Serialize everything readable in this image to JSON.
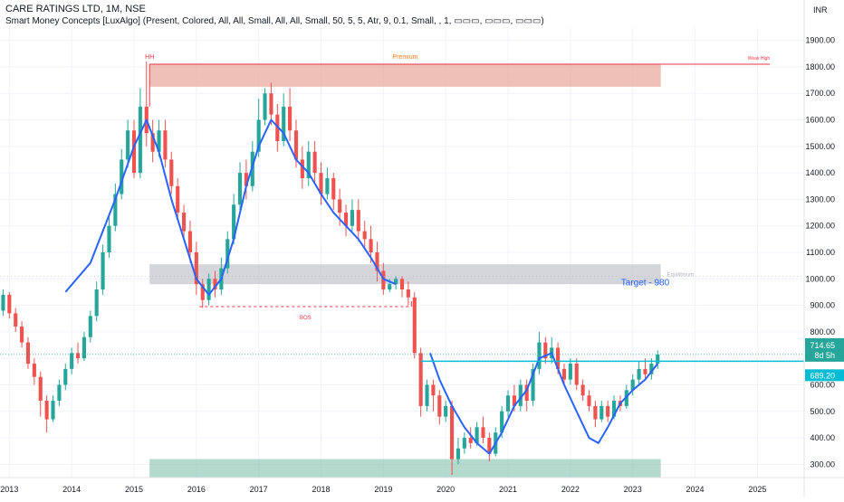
{
  "header": {
    "title": "CARE RATINGS LTD, 1M, NSE",
    "indicator": "Smart Money Concepts [LuxAlgo] (Present, Colored, All, All, Small, All, All, Small, 50, 5, 5, Atr, 9, 0.1, Small, , 1, ▭▭▭, ▭▭▭, ▭▭▭)"
  },
  "chart_data": {
    "type": "candlestick",
    "currency": "INR",
    "ylim": [
      250,
      1950
    ],
    "xlim": [
      2012.85,
      2025.75
    ],
    "y_ticks": [
      300,
      400,
      500,
      600,
      700,
      800,
      900,
      1000,
      1100,
      1200,
      1300,
      1400,
      1500,
      1600,
      1700,
      1800,
      1900
    ],
    "x_ticks": [
      "2013",
      "2014",
      "2015",
      "2016",
      "2017",
      "2018",
      "2019",
      "2020",
      "2021",
      "2022",
      "2023",
      "2024",
      "2025"
    ],
    "last_price": "714.65",
    "countdown": "8d 5h",
    "target_level": "689.20",
    "target_label": "Target - 980",
    "zones": [
      {
        "name": "Premium",
        "x": [
          2015.25,
          2023.45
        ],
        "y": [
          1725,
          1810
        ],
        "color": "#e8a598"
      },
      {
        "name": "Equilibrium",
        "x": [
          2015.25,
          2023.45
        ],
        "y": [
          980,
          1055
        ],
        "color": "#b2b5be"
      },
      {
        "name": "Discount",
        "x": [
          2015.25,
          2023.45
        ],
        "y": [
          250,
          320
        ],
        "color": "#94c9b8"
      }
    ],
    "labels": {
      "hh": "HH",
      "premium": "Premium",
      "weak_high": "Weak High",
      "equilibrium": "Equilibrium",
      "bos": "BOS"
    },
    "weak_high_line": {
      "x": [
        2015.25,
        2025.2
      ],
      "y": 1810
    },
    "bos_line": {
      "x": [
        2016.05,
        2019.45
      ],
      "y": 895
    },
    "candles": [
      [
        2012.9,
        880,
        940,
        860,
        960,
        0
      ],
      [
        2013.0,
        940,
        870,
        850,
        950,
        1
      ],
      [
        2013.1,
        870,
        820,
        800,
        890,
        1
      ],
      [
        2013.2,
        820,
        760,
        740,
        840,
        1
      ],
      [
        2013.3,
        760,
        680,
        660,
        780,
        1
      ],
      [
        2013.4,
        680,
        630,
        600,
        700,
        1
      ],
      [
        2013.5,
        630,
        540,
        480,
        650,
        1
      ],
      [
        2013.6,
        540,
        470,
        420,
        560,
        1
      ],
      [
        2013.7,
        470,
        540,
        460,
        560,
        0
      ],
      [
        2013.8,
        540,
        600,
        520,
        620,
        0
      ],
      [
        2013.9,
        600,
        660,
        580,
        680,
        0
      ],
      [
        2014.0,
        660,
        720,
        640,
        740,
        0
      ],
      [
        2014.1,
        720,
        700,
        680,
        760,
        1
      ],
      [
        2014.2,
        700,
        780,
        690,
        800,
        0
      ],
      [
        2014.3,
        780,
        860,
        760,
        880,
        0
      ],
      [
        2014.4,
        860,
        960,
        840,
        990,
        0
      ],
      [
        2014.5,
        960,
        1100,
        940,
        1130,
        0
      ],
      [
        2014.6,
        1100,
        1200,
        1080,
        1240,
        0
      ],
      [
        2014.7,
        1200,
        1320,
        1180,
        1360,
        0
      ],
      [
        2014.8,
        1320,
        1450,
        1300,
        1490,
        0
      ],
      [
        2014.9,
        1450,
        1560,
        1420,
        1600,
        0
      ],
      [
        2015.0,
        1560,
        1400,
        1380,
        1600,
        1
      ],
      [
        2015.1,
        1400,
        1650,
        1380,
        1720,
        0
      ],
      [
        2015.2,
        1650,
        1550,
        1500,
        1820,
        1
      ],
      [
        2015.3,
        1550,
        1480,
        1440,
        1600,
        1
      ],
      [
        2015.4,
        1480,
        1560,
        1460,
        1600,
        0
      ],
      [
        2015.5,
        1560,
        1450,
        1420,
        1600,
        1
      ],
      [
        2015.6,
        1450,
        1350,
        1320,
        1480,
        1
      ],
      [
        2015.7,
        1350,
        1250,
        1220,
        1380,
        1
      ],
      [
        2015.8,
        1250,
        1180,
        1150,
        1280,
        1
      ],
      [
        2015.9,
        1180,
        1100,
        1060,
        1220,
        1
      ],
      [
        2016.0,
        1100,
        980,
        940,
        1140,
        1
      ],
      [
        2016.1,
        980,
        920,
        890,
        1000,
        1
      ],
      [
        2016.2,
        920,
        1000,
        900,
        1020,
        0
      ],
      [
        2016.3,
        1000,
        960,
        930,
        1030,
        1
      ],
      [
        2016.4,
        960,
        1040,
        940,
        1080,
        0
      ],
      [
        2016.5,
        1040,
        1150,
        1020,
        1180,
        0
      ],
      [
        2016.6,
        1150,
        1280,
        1130,
        1320,
        0
      ],
      [
        2016.7,
        1280,
        1400,
        1260,
        1440,
        0
      ],
      [
        2016.8,
        1400,
        1350,
        1300,
        1450,
        1
      ],
      [
        2016.9,
        1350,
        1480,
        1330,
        1520,
        0
      ],
      [
        2017.0,
        1480,
        1600,
        1460,
        1680,
        0
      ],
      [
        2017.1,
        1600,
        1700,
        1580,
        1720,
        0
      ],
      [
        2017.2,
        1700,
        1620,
        1580,
        1740,
        1
      ],
      [
        2017.3,
        1620,
        1520,
        1480,
        1660,
        1
      ],
      [
        2017.4,
        1520,
        1650,
        1500,
        1700,
        0
      ],
      [
        2017.5,
        1650,
        1560,
        1520,
        1720,
        1
      ],
      [
        2017.6,
        1560,
        1450,
        1420,
        1600,
        1
      ],
      [
        2017.7,
        1450,
        1380,
        1340,
        1500,
        1
      ],
      [
        2017.8,
        1380,
        1480,
        1350,
        1520,
        0
      ],
      [
        2017.9,
        1480,
        1400,
        1360,
        1520,
        1
      ],
      [
        2018.0,
        1400,
        1320,
        1280,
        1440,
        1
      ],
      [
        2018.1,
        1320,
        1380,
        1300,
        1420,
        0
      ],
      [
        2018.2,
        1380,
        1300,
        1260,
        1400,
        1
      ],
      [
        2018.3,
        1300,
        1250,
        1200,
        1340,
        1
      ],
      [
        2018.4,
        1250,
        1200,
        1160,
        1280,
        1
      ],
      [
        2018.5,
        1200,
        1260,
        1180,
        1300,
        0
      ],
      [
        2018.6,
        1260,
        1180,
        1140,
        1300,
        1
      ],
      [
        2018.7,
        1180,
        1150,
        1120,
        1220,
        1
      ],
      [
        2018.8,
        1150,
        1100,
        1060,
        1200,
        1
      ],
      [
        2018.9,
        1100,
        1030,
        990,
        1140,
        1
      ],
      [
        2019.0,
        1030,
        960,
        940,
        1060,
        1
      ],
      [
        2019.1,
        960,
        980,
        950,
        1000,
        0
      ],
      [
        2019.2,
        980,
        1000,
        960,
        1010,
        0
      ],
      [
        2019.3,
        1000,
        960,
        930,
        1010,
        1
      ],
      [
        2019.4,
        960,
        930,
        900,
        990,
        1
      ],
      [
        2019.5,
        930,
        720,
        700,
        950,
        1
      ],
      [
        2019.6,
        720,
        520,
        480,
        740,
        1
      ],
      [
        2019.7,
        520,
        600,
        500,
        620,
        0
      ],
      [
        2019.8,
        600,
        560,
        500,
        620,
        1
      ],
      [
        2019.9,
        560,
        480,
        450,
        580,
        1
      ],
      [
        2020.0,
        480,
        520,
        460,
        540,
        0
      ],
      [
        2020.1,
        520,
        320,
        260,
        540,
        1
      ],
      [
        2020.2,
        320,
        360,
        300,
        400,
        0
      ],
      [
        2020.3,
        360,
        400,
        340,
        420,
        0
      ],
      [
        2020.4,
        400,
        380,
        360,
        440,
        1
      ],
      [
        2020.5,
        380,
        440,
        370,
        460,
        0
      ],
      [
        2020.6,
        440,
        400,
        380,
        480,
        1
      ],
      [
        2020.7,
        400,
        340,
        310,
        420,
        1
      ],
      [
        2020.8,
        340,
        420,
        330,
        440,
        0
      ],
      [
        2020.9,
        420,
        500,
        400,
        520,
        0
      ],
      [
        2021.0,
        500,
        560,
        480,
        580,
        0
      ],
      [
        2021.1,
        560,
        520,
        500,
        600,
        1
      ],
      [
        2021.2,
        520,
        600,
        500,
        620,
        0
      ],
      [
        2021.3,
        600,
        540,
        500,
        620,
        1
      ],
      [
        2021.4,
        540,
        660,
        520,
        680,
        0
      ],
      [
        2021.5,
        660,
        760,
        640,
        800,
        0
      ],
      [
        2021.6,
        760,
        700,
        680,
        780,
        1
      ],
      [
        2021.7,
        700,
        740,
        680,
        780,
        0
      ],
      [
        2021.8,
        740,
        660,
        640,
        760,
        1
      ],
      [
        2021.9,
        660,
        620,
        600,
        680,
        1
      ],
      [
        2022.0,
        620,
        680,
        600,
        700,
        0
      ],
      [
        2022.1,
        680,
        600,
        580,
        700,
        1
      ],
      [
        2022.2,
        600,
        560,
        540,
        620,
        1
      ],
      [
        2022.3,
        560,
        520,
        500,
        580,
        1
      ],
      [
        2022.4,
        520,
        470,
        440,
        540,
        1
      ],
      [
        2022.5,
        470,
        520,
        460,
        540,
        0
      ],
      [
        2022.6,
        520,
        480,
        460,
        540,
        1
      ],
      [
        2022.7,
        480,
        540,
        470,
        560,
        0
      ],
      [
        2022.8,
        540,
        520,
        500,
        560,
        1
      ],
      [
        2022.9,
        520,
        580,
        510,
        600,
        0
      ],
      [
        2023.0,
        580,
        620,
        560,
        640,
        0
      ],
      [
        2023.1,
        620,
        660,
        600,
        690,
        0
      ],
      [
        2023.2,
        660,
        640,
        620,
        700,
        1
      ],
      [
        2023.3,
        640,
        680,
        620,
        700,
        0
      ],
      [
        2023.4,
        680,
        714.65,
        660,
        730,
        0
      ]
    ],
    "swing_line": [
      [
        2013.9,
        950
      ],
      [
        2014.3,
        1060
      ],
      [
        2014.7,
        1300
      ],
      [
        2015.0,
        1500
      ],
      [
        2015.2,
        1600
      ],
      [
        2015.4,
        1480
      ],
      [
        2015.6,
        1300
      ],
      [
        2015.8,
        1150
      ],
      [
        2016.0,
        1000
      ],
      [
        2016.2,
        940
      ],
      [
        2016.4,
        1000
      ],
      [
        2016.6,
        1150
      ],
      [
        2016.8,
        1350
      ],
      [
        2017.0,
        1500
      ],
      [
        2017.2,
        1600
      ],
      [
        2017.4,
        1550
      ],
      [
        2017.6,
        1450
      ],
      [
        2017.8,
        1400
      ],
      [
        2018.0,
        1320
      ],
      [
        2018.2,
        1250
      ],
      [
        2018.4,
        1200
      ],
      [
        2018.6,
        1150
      ],
      [
        2018.8,
        1080
      ],
      [
        2019.0,
        1000
      ],
      [
        2019.2,
        980
      ]
    ],
    "pattern_line": [
      [
        2019.75,
        720
      ],
      [
        2019.9,
        620
      ],
      [
        2020.1,
        520
      ],
      [
        2020.3,
        440
      ],
      [
        2020.5,
        380
      ],
      [
        2020.7,
        340
      ],
      [
        2020.9,
        420
      ],
      [
        2021.1,
        520
      ],
      [
        2021.3,
        580
      ],
      [
        2021.5,
        700
      ],
      [
        2021.7,
        720
      ],
      [
        2021.9,
        600
      ],
      [
        2022.1,
        500
      ],
      [
        2022.3,
        400
      ],
      [
        2022.45,
        380
      ],
      [
        2022.6,
        440
      ],
      [
        2022.8,
        530
      ],
      [
        2023.0,
        580
      ],
      [
        2023.2,
        620
      ],
      [
        2023.4,
        680
      ]
    ]
  }
}
